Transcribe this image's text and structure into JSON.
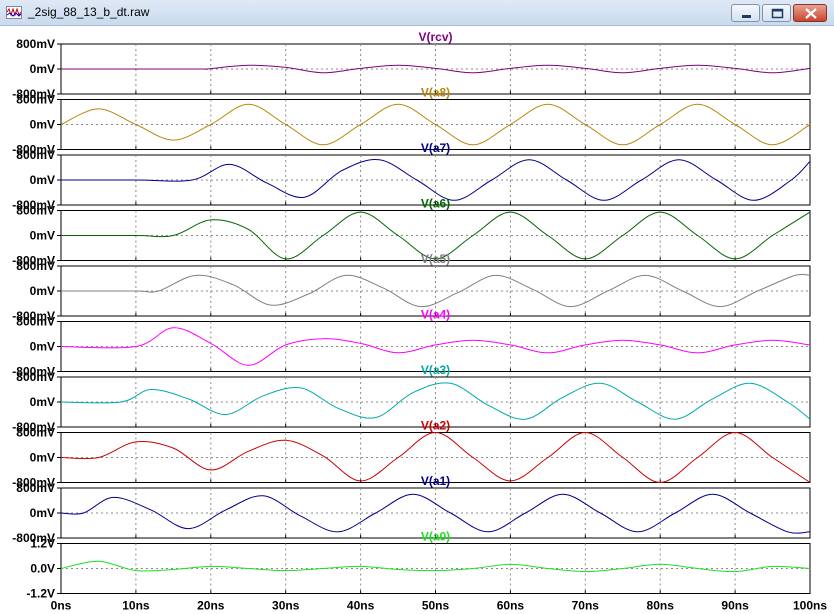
{
  "window": {
    "title": "_2sig_88_13_b_dt.raw",
    "app_icon": "waveform-icon",
    "buttons": [
      "minimize-icon",
      "maximize-icon",
      "close-icon"
    ]
  },
  "chart_data": {
    "type": "line",
    "x_axis": {
      "range": [
        0,
        100
      ],
      "unit": "ns",
      "tick_values": [
        0,
        10,
        20,
        30,
        40,
        50,
        60,
        70,
        80,
        90,
        100
      ],
      "tick_labels": [
        "0ns",
        "10ns",
        "20ns",
        "30ns",
        "40ns",
        "50ns",
        "60ns",
        "70ns",
        "80ns",
        "90ns",
        "100ns"
      ]
    },
    "grid": true,
    "panes": [
      {
        "name": "V(rcv)",
        "color": "#800080",
        "ylim": [
          -0.8,
          0.8
        ],
        "y_ticks": [
          0.8,
          0,
          -0.8
        ],
        "y_tick_labels": [
          "800mV",
          "0mV",
          "-800mV"
        ],
        "x": [
          0,
          10,
          19,
          19.5,
          25,
          30,
          35,
          40,
          45,
          50,
          55,
          60,
          65,
          70,
          75,
          80,
          85,
          90,
          95,
          100
        ],
        "y": [
          0,
          0,
          0,
          0,
          0.12,
          0.05,
          -0.12,
          0.02,
          0.12,
          0.02,
          -0.12,
          0.02,
          0.12,
          0.02,
          -0.12,
          0.02,
          0.12,
          0.02,
          -0.12,
          0.02
        ]
      },
      {
        "name": "V(a8)",
        "color": "#b8860b",
        "ylim": [
          -0.8,
          0.8
        ],
        "y_ticks": [
          0.8,
          0,
          -0.8
        ],
        "y_tick_labels": [
          "800mV",
          "0mV",
          "-800mV"
        ],
        "x": [
          0,
          5,
          10,
          15,
          20,
          25,
          30,
          35,
          40,
          45,
          50,
          55,
          60,
          65,
          70,
          75,
          80,
          85,
          90,
          95,
          100
        ],
        "y": [
          0,
          0.5,
          0,
          -0.5,
          0,
          0.65,
          0,
          -0.65,
          0,
          0.65,
          0,
          -0.65,
          0,
          0.65,
          0,
          -0.65,
          0,
          0.65,
          0,
          -0.65,
          0
        ]
      },
      {
        "name": "V(a7)",
        "color": "#00008b",
        "ylim": [
          -0.8,
          0.8
        ],
        "y_ticks": [
          0.8,
          0,
          -0.8
        ],
        "y_tick_labels": [
          "800mV",
          "0mV",
          "-800mV"
        ],
        "x": [
          0,
          10,
          17.5,
          22.5,
          27.5,
          32.5,
          37.5,
          42.5,
          47.5,
          52.5,
          57.5,
          62.5,
          67.5,
          72.5,
          77.5,
          82.5,
          87.5,
          92.5,
          97.5,
          100
        ],
        "y": [
          0,
          0,
          0,
          0.5,
          -0.1,
          -0.55,
          0.3,
          0.65,
          0,
          -0.65,
          0,
          0.65,
          0,
          -0.65,
          0,
          0.65,
          0,
          -0.65,
          0,
          0.6
        ]
      },
      {
        "name": "V(a6)",
        "color": "#006400",
        "ylim": [
          -0.8,
          0.8
        ],
        "y_ticks": [
          0.8,
          0,
          -0.8
        ],
        "y_tick_labels": [
          "800mV",
          "0mV",
          "-800mV"
        ],
        "x": [
          0,
          10,
          15,
          20,
          25,
          30,
          35,
          40,
          45,
          50,
          55,
          60,
          65,
          70,
          75,
          80,
          85,
          90,
          95,
          100
        ],
        "y": [
          0,
          0,
          0,
          0.5,
          0.2,
          -0.75,
          0,
          0.75,
          0,
          -0.75,
          0,
          0.75,
          0,
          -0.75,
          0,
          0.75,
          0,
          -0.75,
          0,
          0.75
        ]
      },
      {
        "name": "V(a5)",
        "color": "#808080",
        "ylim": [
          -0.8,
          0.8
        ],
        "y_ticks": [
          0.8,
          0,
          -0.8
        ],
        "y_tick_labels": [
          "800mV",
          "0mV",
          "-800mV"
        ],
        "x": [
          0,
          10,
          13,
          18,
          23,
          28,
          33,
          38,
          43,
          48,
          53,
          58,
          63,
          68,
          73,
          78,
          83,
          88,
          93,
          98,
          100
        ],
        "y": [
          0,
          0,
          0,
          0.5,
          0.2,
          -0.45,
          -0.1,
          0.5,
          0.1,
          -0.5,
          -0.05,
          0.5,
          0.05,
          -0.5,
          0,
          0.5,
          0,
          -0.5,
          0,
          0.5,
          0.5
        ]
      },
      {
        "name": "V(a4)",
        "color": "#ff00ff",
        "ylim": [
          -0.8,
          0.8
        ],
        "y_ticks": [
          0.8,
          0,
          -0.8
        ],
        "y_tick_labels": [
          "800mV",
          "0mV",
          "-800mV"
        ],
        "x": [
          0,
          10,
          15,
          20,
          25,
          30,
          35,
          40,
          45,
          50,
          55,
          60,
          65,
          70,
          75,
          80,
          85,
          90,
          95,
          100
        ],
        "y": [
          0,
          0,
          0.6,
          0.1,
          -0.6,
          0.05,
          0.25,
          0.1,
          -0.2,
          0.05,
          0.2,
          0.05,
          -0.2,
          0.05,
          0.2,
          0.05,
          -0.2,
          0.05,
          0.2,
          0.05
        ]
      },
      {
        "name": "V(a3)",
        "color": "#00aaaa",
        "ylim": [
          -0.8,
          0.8
        ],
        "y_ticks": [
          0.8,
          0,
          -0.8
        ],
        "y_tick_labels": [
          "800mV",
          "0mV",
          "-800mV"
        ],
        "x": [
          0,
          8,
          12,
          17,
          22,
          27,
          32,
          37,
          42,
          47,
          52,
          57,
          62,
          67,
          72,
          77,
          82,
          87,
          92,
          97,
          100
        ],
        "y": [
          0,
          0,
          0.4,
          0.1,
          -0.4,
          0.2,
          0.45,
          -0.2,
          -0.5,
          0.3,
          0.6,
          -0.1,
          -0.55,
          0.15,
          0.6,
          0,
          -0.55,
          0.1,
          0.6,
          0,
          -0.55
        ]
      },
      {
        "name": "V(a2)",
        "color": "#cc0000",
        "ylim": [
          -0.8,
          0.8
        ],
        "y_ticks": [
          0.8,
          0,
          -0.8
        ],
        "y_tick_labels": [
          "800mV",
          "0mV",
          "-800mV"
        ],
        "x": [
          0,
          5,
          10,
          15,
          20,
          25,
          30,
          35,
          40,
          45,
          50,
          55,
          60,
          65,
          70,
          75,
          80,
          85,
          90,
          95,
          100
        ],
        "y": [
          0,
          0,
          0.5,
          0.3,
          -0.4,
          0.2,
          0.55,
          0.05,
          -0.75,
          0,
          0.8,
          0,
          -0.75,
          0,
          0.8,
          0,
          -0.8,
          0,
          0.8,
          0,
          -0.8
        ]
      },
      {
        "name": "V(a1)",
        "color": "#00008b",
        "ylim": [
          -0.8,
          0.8
        ],
        "y_ticks": [
          0.8,
          0,
          -0.8
        ],
        "y_tick_labels": [
          "800mV",
          "0mV",
          "-800mV"
        ],
        "x": [
          0,
          3,
          7,
          12,
          17,
          22,
          27,
          32,
          37,
          42,
          47,
          52,
          57,
          62,
          67,
          72,
          77,
          82,
          87,
          92,
          97,
          100
        ],
        "y": [
          0,
          0,
          0.5,
          0.1,
          -0.5,
          0.1,
          0.55,
          -0.1,
          -0.6,
          0,
          0.6,
          0,
          -0.6,
          0,
          0.6,
          0,
          -0.6,
          0,
          0.6,
          0,
          -0.6,
          -0.6
        ]
      },
      {
        "name": "V(a0)",
        "color": "#22dd22",
        "ylim": [
          -1.2,
          1.2
        ],
        "y_ticks": [
          1.2,
          0,
          -1.2
        ],
        "y_tick_labels": [
          "1.2V",
          "0.0V",
          "-1.2V"
        ],
        "x": [
          0,
          5,
          10,
          15,
          20,
          25,
          30,
          35,
          40,
          45,
          50,
          55,
          60,
          65,
          70,
          75,
          80,
          85,
          90,
          95,
          100
        ],
        "y": [
          0,
          0.35,
          -0.1,
          -0.05,
          0.1,
          0,
          -0.1,
          0,
          0.1,
          -0.05,
          -0.1,
          0,
          0.2,
          0,
          -0.15,
          0,
          0.2,
          0,
          -0.15,
          0.1,
          0
        ]
      }
    ]
  }
}
